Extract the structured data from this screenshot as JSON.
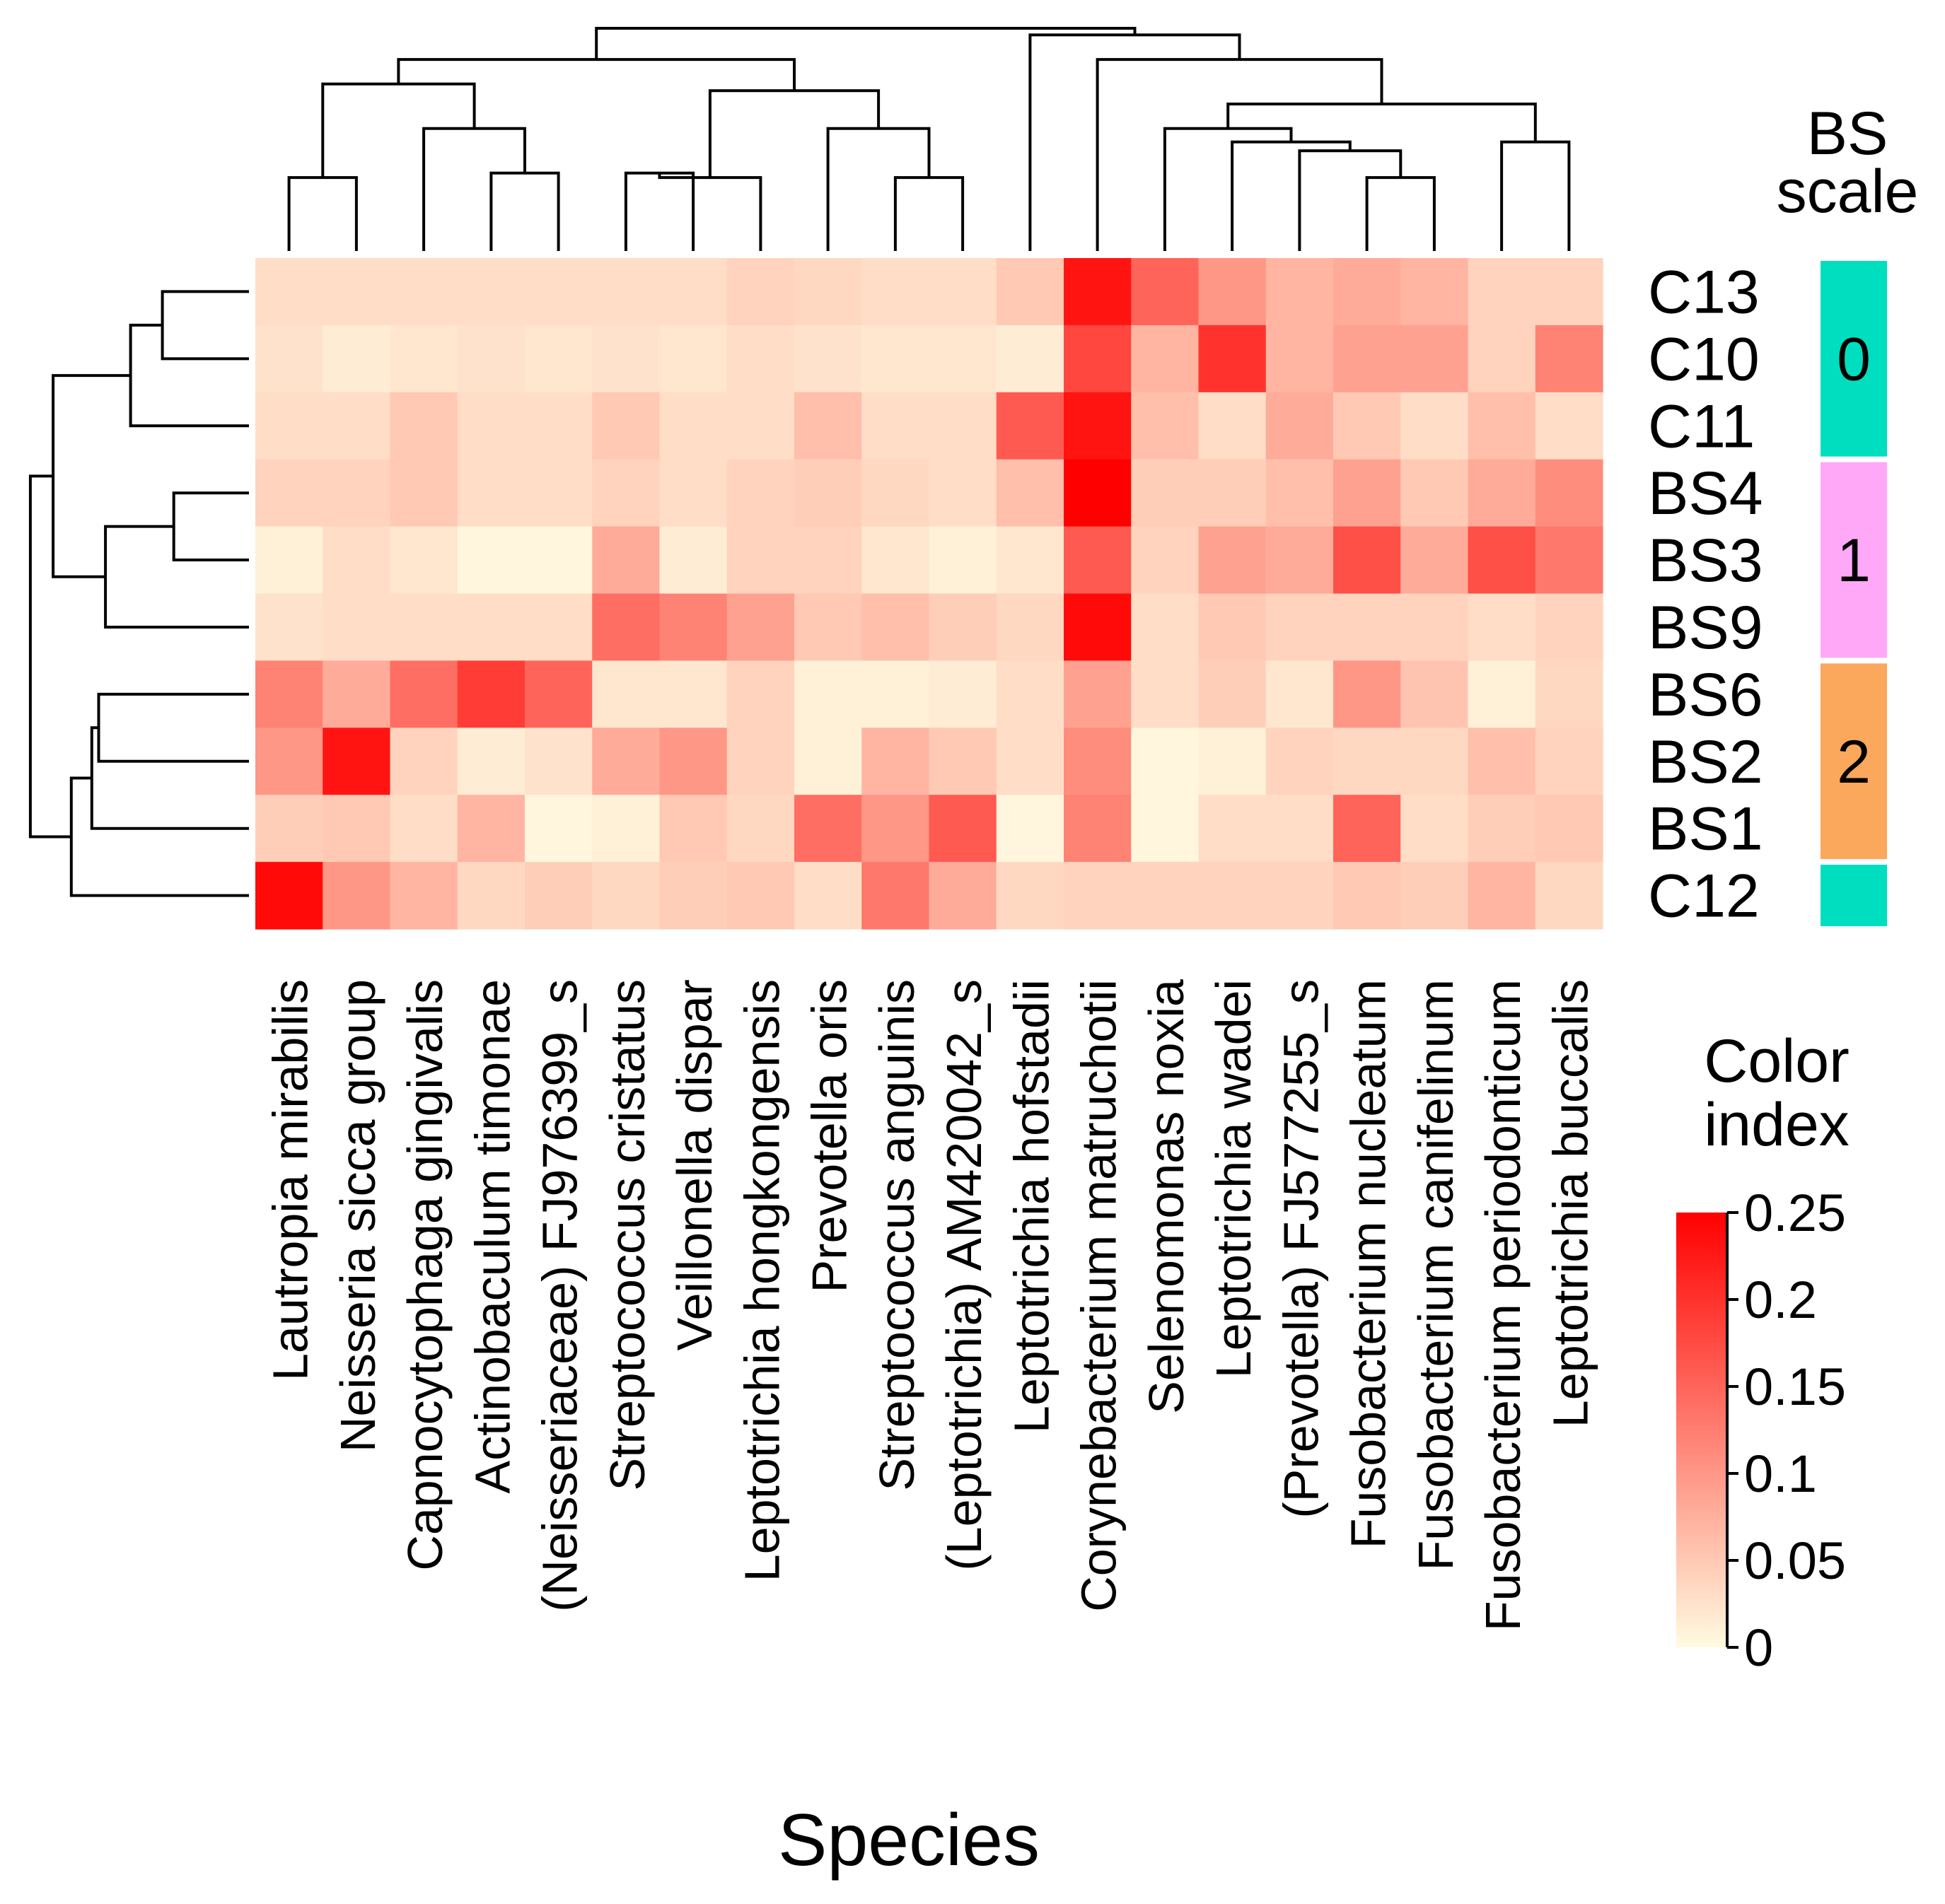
{
  "chart_data": {
    "type": "heatmap",
    "xlabel": "Species",
    "ylabel": "",
    "columns": [
      "Lautropia mirabilis",
      "Neisseria sicca group",
      "Capnocytophaga gingivalis",
      "Actinobaculum timonae",
      "(Neisseriaceae) FJ976399_s",
      "Streptococcus cristatus",
      "Veillonella dispar",
      "Leptotrichia hongkongensis",
      "Prevotella oris",
      "Streptococcus anguinis",
      "(Leptotrichia) AM420042_s",
      "Leptotrichia hofstadii",
      "Corynebacterium matruchotii",
      "Selenomonas noxia",
      "Leptotrichia wadei",
      "(Prevotella) FJ577255_s",
      "Fusobacterium nucleatum",
      "Fusobacterium canifelinum",
      "Fusobacterium periodonticum",
      "Leptotrichia buccalis"
    ],
    "rows": [
      "C13",
      "C10",
      "C11",
      "BS4",
      "BS3",
      "BS9",
      "BS6",
      "BS2",
      "BS1",
      "C12"
    ],
    "values": [
      [
        0.03,
        0.03,
        0.03,
        0.03,
        0.03,
        0.03,
        0.03,
        0.04,
        0.035,
        0.03,
        0.03,
        0.05,
        0.23,
        0.15,
        0.1,
        0.07,
        0.08,
        0.07,
        0.04,
        0.04
      ],
      [
        0.025,
        0.015,
        0.02,
        0.025,
        0.02,
        0.025,
        0.02,
        0.03,
        0.025,
        0.02,
        0.02,
        0.015,
        0.18,
        0.07,
        0.2,
        0.07,
        0.09,
        0.09,
        0.04,
        0.12
      ],
      [
        0.03,
        0.03,
        0.05,
        0.03,
        0.03,
        0.05,
        0.03,
        0.03,
        0.06,
        0.03,
        0.03,
        0.16,
        0.23,
        0.06,
        0.03,
        0.08,
        0.05,
        0.03,
        0.06,
        0.03
      ],
      [
        0.04,
        0.04,
        0.05,
        0.03,
        0.03,
        0.04,
        0.03,
        0.04,
        0.045,
        0.035,
        0.03,
        0.06,
        0.25,
        0.045,
        0.045,
        0.06,
        0.09,
        0.05,
        0.08,
        0.11
      ],
      [
        0.01,
        0.03,
        0.02,
        0.005,
        0.005,
        0.08,
        0.015,
        0.04,
        0.04,
        0.02,
        0.01,
        0.02,
        0.16,
        0.04,
        0.09,
        0.08,
        0.17,
        0.08,
        0.17,
        0.13
      ],
      [
        0.025,
        0.03,
        0.03,
        0.03,
        0.03,
        0.14,
        0.12,
        0.09,
        0.05,
        0.06,
        0.045,
        0.035,
        0.24,
        0.03,
        0.05,
        0.04,
        0.04,
        0.04,
        0.03,
        0.04
      ],
      [
        0.12,
        0.08,
        0.14,
        0.19,
        0.15,
        0.02,
        0.02,
        0.04,
        0.01,
        0.01,
        0.015,
        0.03,
        0.09,
        0.03,
        0.045,
        0.02,
        0.1,
        0.055,
        0.01,
        0.035
      ],
      [
        0.1,
        0.23,
        0.04,
        0.015,
        0.025,
        0.08,
        0.1,
        0.04,
        0.01,
        0.07,
        0.05,
        0.03,
        0.11,
        0.005,
        0.01,
        0.04,
        0.035,
        0.035,
        0.06,
        0.04
      ],
      [
        0.045,
        0.05,
        0.03,
        0.07,
        0.005,
        0.01,
        0.05,
        0.035,
        0.14,
        0.1,
        0.16,
        0.005,
        0.12,
        0.005,
        0.03,
        0.03,
        0.15,
        0.03,
        0.045,
        0.05
      ],
      [
        0.24,
        0.1,
        0.07,
        0.035,
        0.045,
        0.035,
        0.045,
        0.05,
        0.03,
        0.13,
        0.08,
        0.035,
        0.04,
        0.04,
        0.04,
        0.04,
        0.05,
        0.045,
        0.07,
        0.035
      ]
    ],
    "row_groups": [
      "0",
      "0",
      "0",
      "1",
      "1",
      "1",
      "2",
      "2",
      "2",
      "0"
    ],
    "group_colors": {
      "0": "#00DEC0",
      "1": "#FFA8F8",
      "2": "#FBA85C"
    },
    "group_legend_title": [
      "BS",
      "scale"
    ],
    "colorbar_title": [
      "Color",
      "index"
    ],
    "colorbar_range": [
      0,
      0.25
    ],
    "colorbar_ticks": [
      "0",
      "0.05",
      "0.1",
      "0.15",
      "0.2",
      "0.25"
    ],
    "colorscale": [
      "#FFFBE1",
      "#FF0000"
    ],
    "col_dendrogram": [
      [
        0,
        1
      ],
      [
        3,
        4
      ],
      [
        2,
        21
      ],
      [
        20,
        22
      ],
      [
        5,
        6
      ],
      [
        7,
        24
      ],
      [
        9,
        10
      ],
      [
        8,
        26
      ],
      [
        25,
        27
      ],
      [
        23,
        28
      ],
      [
        16,
        17
      ],
      [
        15,
        30
      ],
      [
        14,
        31
      ],
      [
        13,
        32
      ],
      [
        18,
        19
      ],
      [
        33,
        34
      ],
      [
        12,
        35
      ],
      [
        11,
        36
      ],
      [
        29,
        37
      ]
    ],
    "col_dendrogram_heights": [
      0.33,
      0.35,
      0.55,
      0.75,
      0.35,
      0.33,
      0.33,
      0.55,
      0.72,
      0.86,
      0.33,
      0.45,
      0.49,
      0.55,
      0.49,
      0.66,
      0.86,
      0.97,
      1.0
    ],
    "row_dendrogram": [
      [
        0,
        1
      ],
      [
        3,
        4
      ],
      [
        2,
        10
      ],
      [
        11,
        5
      ],
      [
        12,
        13
      ],
      [
        6,
        7
      ],
      [
        15,
        8
      ],
      [
        16,
        9
      ],
      [
        14,
        17
      ]
    ],
    "row_dendrogram_heights": [
      0.38,
      0.33,
      0.52,
      0.63,
      0.86,
      0.66,
      0.69,
      0.78,
      0.96
    ]
  }
}
